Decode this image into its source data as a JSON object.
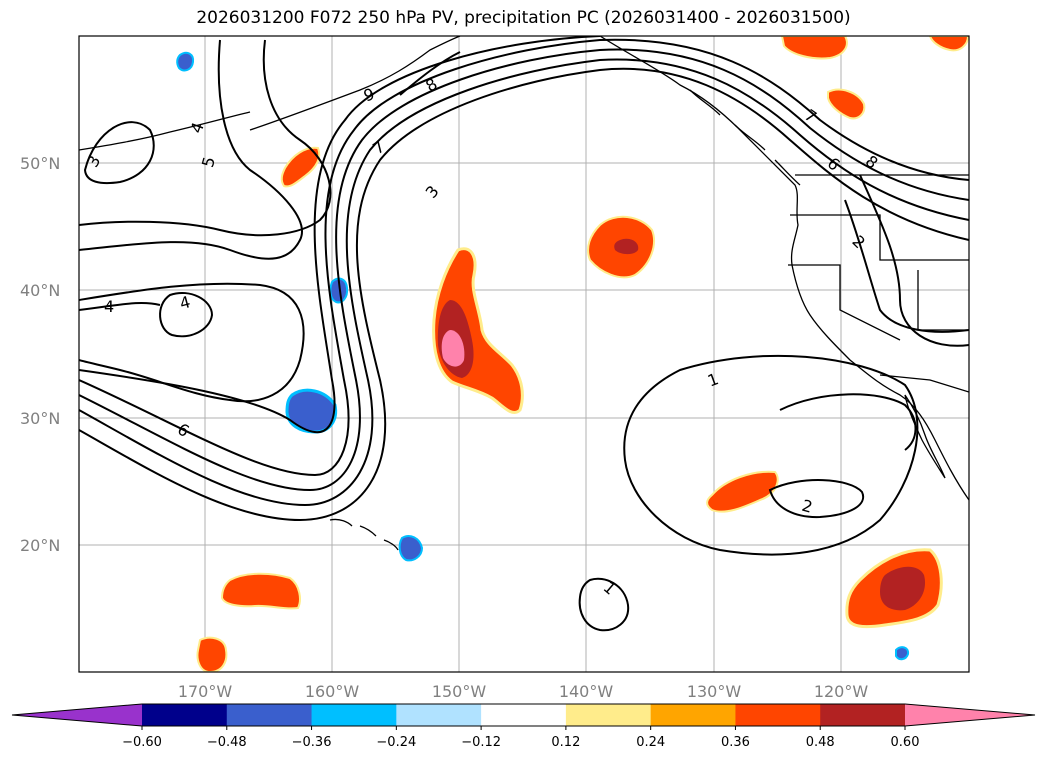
{
  "title": "2026031200 F072 250 hPa PV, precipitation PC (2026031400 - 2026031500)",
  "lat_labels": [
    "50°N",
    "40°N",
    "30°N",
    "20°N"
  ],
  "lon_labels": [
    "170°W",
    "160°W",
    "150°W",
    "140°W",
    "130°W",
    "120°W"
  ],
  "colorbar": {
    "ticks": [
      "−0.60",
      "−0.48",
      "−0.36",
      "−0.24",
      "−0.12",
      "0.12",
      "0.24",
      "0.36",
      "0.48",
      "0.60"
    ],
    "colors": [
      "#9932cc",
      "#00008b",
      "#3a5fcd",
      "#00bfff",
      "#b0e2ff",
      "#ffffff",
      "#ffec8b",
      "#ffa500",
      "#ff4500",
      "#b22222",
      "#ff82ab"
    ]
  },
  "contour_labels": [
    "3",
    "4",
    "5",
    "9",
    "8",
    "7",
    "3",
    "4",
    "4",
    "6",
    "7",
    "6",
    "8",
    "2",
    "1",
    "2",
    "1"
  ],
  "colors": {
    "coast": "#000000",
    "grid": "#b0b0b0",
    "contour": "#000000"
  }
}
